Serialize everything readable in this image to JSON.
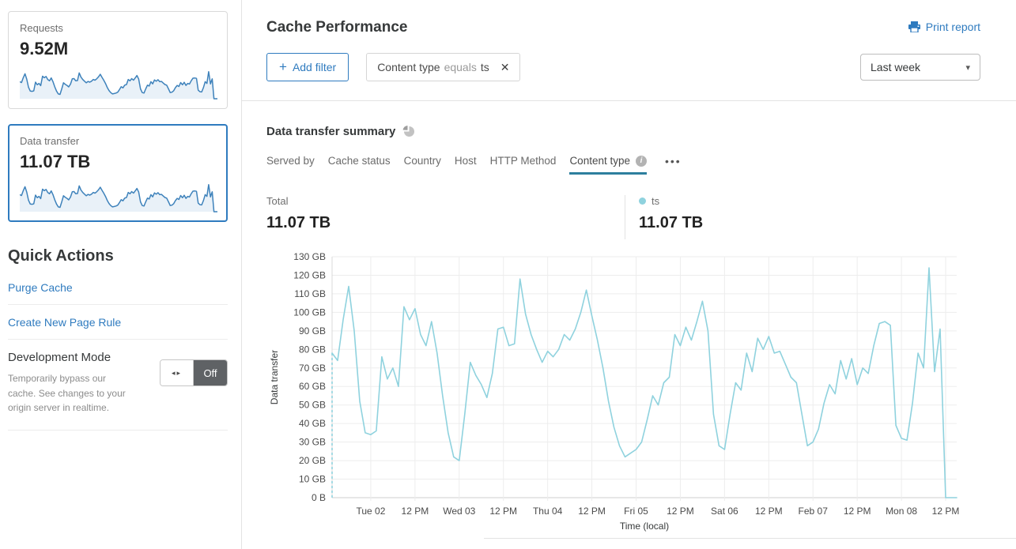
{
  "sidebar": {
    "requests_card": {
      "label": "Requests",
      "value": "9.52M"
    },
    "data_transfer_card": {
      "label": "Data transfer",
      "value": "11.07 TB"
    },
    "quick_actions": {
      "title": "Quick Actions",
      "links": [
        "Purge Cache",
        "Create New Page Rule"
      ],
      "development_mode": {
        "title": "Development Mode",
        "description": "Temporarily bypass our cache. See changes to your origin server in realtime.",
        "toggle_state": "Off"
      }
    }
  },
  "header": {
    "title": "Cache Performance",
    "print_label": "Print report",
    "time_range": "Last week"
  },
  "filters": {
    "add_label": "Add filter",
    "chips": [
      {
        "field": "Content type",
        "operator": "equals",
        "value": "ts"
      }
    ]
  },
  "summary": {
    "title": "Data transfer summary",
    "tabs": [
      {
        "label": "Served by",
        "active": false,
        "info": false
      },
      {
        "label": "Cache status",
        "active": false,
        "info": false
      },
      {
        "label": "Country",
        "active": false,
        "info": false
      },
      {
        "label": "Host",
        "active": false,
        "info": false
      },
      {
        "label": "HTTP Method",
        "active": false,
        "info": false
      },
      {
        "label": "Content type",
        "active": true,
        "info": true
      }
    ],
    "total": {
      "label": "Total",
      "value": "11.07 TB"
    },
    "legend": [
      {
        "name": "ts",
        "value": "11.07 TB",
        "color": "#8fd2de"
      }
    ]
  },
  "chart_data": {
    "type": "line",
    "title": "Data transfer summary - Content type: ts",
    "xlabel": "Time (local)",
    "ylabel": "Data transfer",
    "unit": "GB",
    "ylim": [
      0,
      130
    ],
    "grid": true,
    "y_ticks": [
      "0 B",
      "10 GB",
      "20 GB",
      "30 GB",
      "40 GB",
      "50 GB",
      "60 GB",
      "70 GB",
      "80 GB",
      "90 GB",
      "100 GB",
      "110 GB",
      "120 GB",
      "130 GB"
    ],
    "x_tick_labels": [
      "Tue 02",
      "12 PM",
      "Wed 03",
      "12 PM",
      "Thu 04",
      "12 PM",
      "Fri 05",
      "12 PM",
      "Sat 06",
      "12 PM",
      "Feb 07",
      "12 PM",
      "Mon 08",
      "12 PM"
    ],
    "x_tick_indices": [
      7,
      15,
      23,
      31,
      39,
      47,
      55,
      63,
      71,
      79,
      87,
      95,
      103,
      111
    ],
    "leading_dashed": true,
    "series": [
      {
        "name": "ts",
        "color": "#8fd2de",
        "values": [
          78,
          74,
          96,
          114,
          90,
          52,
          35,
          34,
          36,
          76,
          64,
          70,
          60,
          103,
          96,
          102,
          88,
          82,
          95,
          78,
          55,
          35,
          22,
          20,
          45,
          73,
          66,
          61,
          54,
          67,
          91,
          92,
          82,
          83,
          118,
          99,
          88,
          80,
          73,
          79,
          76,
          80,
          88,
          85,
          91,
          100,
          112,
          98,
          85,
          70,
          52,
          38,
          28,
          22,
          24,
          26,
          30,
          42,
          55,
          50,
          62,
          65,
          88,
          82,
          92,
          85,
          95,
          106,
          90,
          45,
          28,
          26,
          45,
          62,
          58,
          78,
          68,
          86,
          80,
          87,
          78,
          79,
          72,
          65,
          62,
          45,
          28,
          30,
          37,
          51,
          61,
          56,
          74,
          64,
          75,
          61,
          70,
          67,
          82,
          94,
          95,
          93,
          39,
          32,
          31,
          51,
          78,
          70,
          124,
          68,
          91,
          0,
          0,
          0
        ]
      }
    ]
  },
  "icons": {
    "add": "+",
    "close": "✕",
    "caret": "▾",
    "more": "•••",
    "info": "i",
    "toggle_arrows": "◂▸"
  },
  "colors": {
    "accent_blue": "#2f7bbf",
    "chart_line": "#8fd2de",
    "sparkline": "#3e82bb",
    "sparkline_fill": "#e9f1f8",
    "active_tab_underline": "#2d7f9e",
    "toggle_off_bg": "#5f6265"
  }
}
